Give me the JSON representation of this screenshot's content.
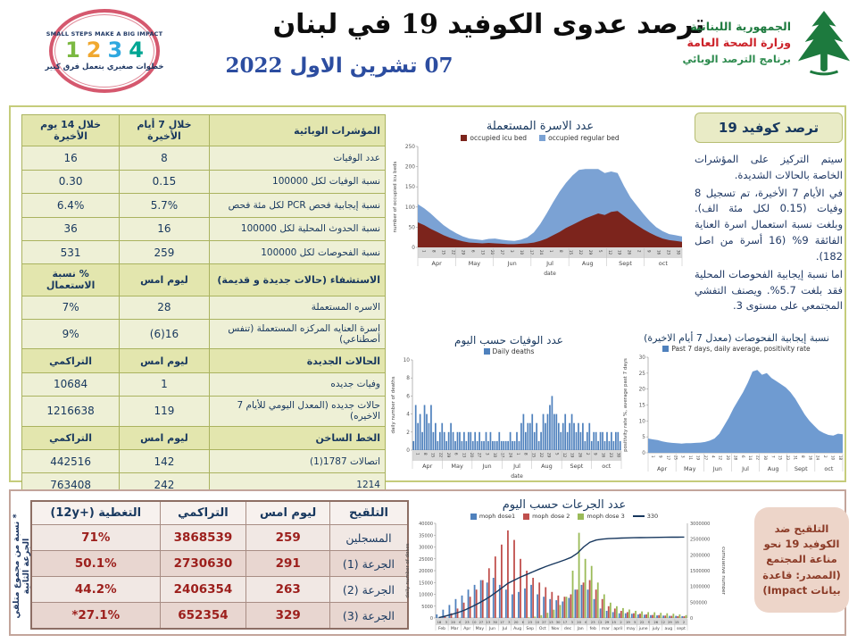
{
  "header": {
    "stamp": {
      "top_text": "SMALL STEPS MAKE A BIG IMPACT",
      "numbers": [
        "1",
        "2",
        "3",
        "4"
      ],
      "number_colors": [
        "#7cb942",
        "#f0a830",
        "#2fa8df",
        "#00a693"
      ],
      "bottom_text": "خطوات صغيري بتعمل فرق كبير"
    },
    "title": "ترصد عدوى الكوفيد 19 في لبنان",
    "date": "07 تشرين الاول 2022",
    "ministry": {
      "line1": "الجمهورية اللبنانية",
      "line2": "وزارة الصحة العامة",
      "line3": "برنامج الترصد الوبائي"
    }
  },
  "surveillance": {
    "panel_title": "ترصد كوفيد 19",
    "paragraphs": [
      "سيتم التركيز على المؤشرات الخاصة بالحالات الشديدة.",
      "في الأيام 7 الأخيرة، تم تسجيل 8 وفيات (0.15 لكل مئة الف). وبلغت نسبة استعمال اسرة العناية الفائقة 9% (16 أسرة من اصل 182).",
      "اما نسبة إيجابية الفحوصات المحلية فقد بلغت 5.7%. ويصنف التفشي المجتمعي على مستوى 3."
    ],
    "table": {
      "rows": [
        {
          "header": true,
          "cells": [
            "المؤشرات الوبائية",
            "خلال 7 أيام الأخيرة",
            "خلال 14 يوم الأخيرة"
          ]
        },
        {
          "header": false,
          "cells": [
            "عدد الوفيات",
            "8",
            "16"
          ]
        },
        {
          "header": false,
          "cells": [
            "نسبة الوفيات لكل 100000",
            "0.15",
            "0.30"
          ]
        },
        {
          "header": false,
          "cells": [
            "نسبة إيجابية فحص PCR لكل مئة فحص",
            "5.7%",
            "6.4%"
          ]
        },
        {
          "header": false,
          "cells": [
            "نسبة الحدوث المحلية لكل 100000",
            "16",
            "36"
          ]
        },
        {
          "header": false,
          "cells": [
            "نسبة الفحوصات لكل 100000",
            "259",
            "531"
          ]
        },
        {
          "header": true,
          "cells": [
            "الاستشفاء (حالات جديدة و قديمة)",
            "ليوم امس",
            "% نسبة الاستعمال"
          ]
        },
        {
          "header": false,
          "cells": [
            "الاسره المستعملة",
            "28",
            "7%"
          ]
        },
        {
          "header": false,
          "cells": [
            "اسرة العنايه المركزه المستعملة (تنفس أصطناعي)",
            "16(6)",
            "9%"
          ]
        },
        {
          "header": true,
          "cells": [
            "الحالات الجديدة",
            "ليوم امس",
            "التراكمي"
          ]
        },
        {
          "header": false,
          "cells": [
            "وفيات جديده",
            "1",
            "10684"
          ]
        },
        {
          "header": false,
          "cells": [
            "حالات جديده (المعدل اليومي للأيام 7 الاخيره)",
            "119",
            "1216638"
          ]
        },
        {
          "header": true,
          "cells": [
            "الخط الساخن",
            "ليوم امس",
            "التراكمي"
          ]
        },
        {
          "header": false,
          "cells": [
            "اتصالات 1787(1)",
            "142",
            "442516"
          ]
        },
        {
          "header": false,
          "cells": [
            "1214",
            "242",
            "763408"
          ]
        }
      ]
    }
  },
  "vaccination": {
    "table": {
      "columns": [
        "التلقيح",
        "ليوم امس",
        "التراكمي",
        "التغطية (+12y)"
      ],
      "rows": [
        [
          "المسجلين",
          "259",
          "3868539",
          "71%"
        ],
        [
          "الجرعة (1)",
          "291",
          "2730630",
          "50.1%"
        ],
        [
          "الجرعة (2)",
          "263",
          "2406354",
          "44.2%"
        ],
        [
          "الجرعة (3)",
          "329",
          "652354",
          "27.1%*"
        ]
      ]
    },
    "note": "* نسبة من مجموع متلقي الجرعة الثانية",
    "box_text": "التلقيح ضد الكوفيد 19 نحو مناعة المجتمع (المصدر: قاعدة بيانات Impact)"
  },
  "chart_data": [
    {
      "id": "beds",
      "type": "area-stacked",
      "title": "عدد الاسرة المستعملة",
      "ylabel": "number of occupied icu beds",
      "xlabel": "date",
      "ylim": [
        0,
        250
      ],
      "yticks": [
        0,
        50,
        100,
        150,
        200,
        250
      ],
      "months": [
        "Apr",
        "May",
        "Jun",
        "Jul",
        "Aug",
        "Sept",
        "oct"
      ],
      "day_ticks": [
        "1",
        "8",
        "15",
        "22",
        "29",
        "6",
        "13",
        "20",
        "27",
        "3",
        "10",
        "17",
        "24",
        "1",
        "8",
        "15",
        "22",
        "29",
        "5",
        "12",
        "19",
        "26",
        "2",
        "9",
        "16",
        "23",
        "30"
      ],
      "series": [
        {
          "name": "occupied icu bed",
          "color": "#7c241c",
          "values": [
            62,
            55,
            46,
            38,
            30,
            24,
            19,
            15,
            12,
            11,
            10,
            11,
            10,
            9,
            8,
            8,
            9,
            10,
            12,
            16,
            22,
            30,
            38,
            48,
            56,
            64,
            72,
            78,
            84,
            80,
            88,
            90,
            78,
            66,
            55,
            45,
            36,
            28,
            22,
            18,
            16,
            14
          ]
        },
        {
          "name": "occupied regular bed",
          "color": "#7ba2d4",
          "values": [
            45,
            42,
            38,
            31,
            25,
            20,
            16,
            12,
            10,
            9,
            8,
            10,
            12,
            10,
            9,
            8,
            10,
            15,
            25,
            42,
            62,
            82,
            100,
            112,
            122,
            128,
            122,
            116,
            110,
            104,
            100,
            94,
            74,
            58,
            48,
            38,
            29,
            22,
            18,
            15,
            14,
            13
          ]
        }
      ]
    },
    {
      "id": "deaths",
      "type": "bar",
      "title": "عدد الوفيات حسب اليوم",
      "ylabel": "daily number of deaths",
      "xlabel": "date",
      "ylim": [
        0,
        10
      ],
      "yticks": [
        0,
        2,
        4,
        6,
        8,
        10
      ],
      "months": [
        "Apr",
        "May",
        "Jun",
        "Jul",
        "Aug",
        "Sept",
        "oct"
      ],
      "day_ticks": [
        "1",
        "8",
        "15",
        "22",
        "29",
        "6",
        "13",
        "20",
        "27",
        "3",
        "10",
        "17",
        "24",
        "1",
        "8",
        "15",
        "22",
        "29",
        "5",
        "12",
        "19",
        "26",
        "2",
        "9",
        "16",
        "23",
        "30"
      ],
      "legend": [
        {
          "label": "Daily deaths",
          "color": "#4f81bd"
        }
      ],
      "color": "#4f81bd",
      "values": [
        1,
        5,
        3,
        4,
        2,
        5,
        4,
        3,
        5,
        2,
        3,
        1,
        2,
        3,
        2,
        1,
        2,
        3,
        2,
        1,
        2,
        2,
        1,
        2,
        1,
        2,
        2,
        1,
        2,
        1,
        2,
        1,
        1,
        2,
        1,
        2,
        1,
        1,
        1,
        2,
        1,
        1,
        1,
        1,
        2,
        1,
        1,
        2,
        1,
        3,
        4,
        2,
        3,
        3,
        4,
        2,
        3,
        1,
        2,
        4,
        3,
        4,
        5,
        6,
        4,
        4,
        3,
        2,
        3,
        4,
        2,
        3,
        4,
        3,
        2,
        3,
        2,
        3,
        1,
        2,
        3,
        1,
        2,
        2,
        1,
        2,
        2,
        1,
        2,
        1,
        2,
        1,
        2,
        2,
        1
      ]
    },
    {
      "id": "positivity",
      "type": "area",
      "title": "نسبة إيجابية الفحوصات (معدل 7 أيام الاخيرة)",
      "ylabel": "positivity rate %, average past 7 days",
      "ylim": [
        0,
        30
      ],
      "yticks": [
        0,
        5,
        10,
        15,
        20,
        25,
        30
      ],
      "months": [
        "Apr",
        "May",
        "Jun",
        "Jul",
        "Aug",
        "Sept",
        "oct"
      ],
      "day_ticks": [
        "1",
        "9",
        "17",
        "25",
        "3",
        "11",
        "19",
        "27",
        "4",
        "12",
        "20",
        "28",
        "6",
        "14",
        "22",
        "30",
        "7",
        "15",
        "23",
        "31",
        "8",
        "16",
        "24",
        "2",
        "10",
        "18"
      ],
      "legend": [
        {
          "label": "Past 7 days, daily average, positivity rate",
          "color": "#4f81bd"
        }
      ],
      "color": "#6f9bd1",
      "values": [
        4.5,
        4.2,
        4,
        3.6,
        3.3,
        3.1,
        3,
        2.9,
        3,
        3,
        3.1,
        3.2,
        3.4,
        3.8,
        4.5,
        6,
        8.5,
        11,
        14,
        16.5,
        19,
        22,
        25.5,
        26,
        24.5,
        25,
        23.5,
        22.5,
        21.5,
        20.5,
        19,
        17,
        14.5,
        12,
        10,
        8.5,
        7,
        6.2,
        5.6,
        5.4,
        6,
        5.8
      ]
    },
    {
      "id": "doses",
      "type": "combo",
      "title": "عدد الجرعات حسب اليوم",
      "ylabel": "daily number of doses",
      "ylabel_right": "cumulative number",
      "ylim": [
        0,
        40000
      ],
      "yticks": [
        0,
        5000,
        10000,
        15000,
        20000,
        25000,
        30000,
        35000,
        40000
      ],
      "ylim2": [
        0,
        3000000
      ],
      "yticks2": [
        0,
        500000,
        1000000,
        1500000,
        2000000,
        2500000,
        3000000
      ],
      "months": [
        "Feb",
        "Mar",
        "Apr",
        "May",
        "Jun",
        "Jul",
        "Aug",
        "Sep",
        "Oct",
        "Nov",
        "dec",
        "Jan",
        "feb",
        "mar",
        "april",
        "may",
        "june",
        "july",
        "aug",
        "sept"
      ],
      "day_ticks": [
        "18",
        "3",
        "20",
        "6",
        "23",
        "10",
        "27",
        "13",
        "30",
        "17",
        "3",
        "20",
        "6",
        "23",
        "10",
        "27",
        "13",
        "30",
        "17",
        "3",
        "20",
        "6",
        "23",
        "12",
        "29",
        "15",
        "2",
        "19",
        "5",
        "22",
        "9",
        "26",
        "12",
        "29",
        "15",
        "2"
      ],
      "series": [
        {
          "name": "moph dose1",
          "color": "#4f81bd",
          "values": [
            1500,
            3500,
            5500,
            8000,
            9500,
            12000,
            14000,
            16000,
            15000,
            17000,
            14000,
            12000,
            10000,
            11000,
            12500,
            14000,
            10000,
            9000,
            8000,
            7500,
            7000,
            8500,
            12000,
            14000,
            12000,
            8000,
            4000,
            3000,
            2500,
            2000,
            2000,
            1800,
            1500,
            1400,
            1200,
            1100,
            1000,
            900,
            900,
            800
          ]
        },
        {
          "name": "moph dose 2",
          "color": "#c0504d",
          "values": [
            0,
            600,
            2000,
            4000,
            6500,
            9000,
            12000,
            16000,
            21000,
            26000,
            31000,
            37000,
            33000,
            25000,
            20000,
            17000,
            15000,
            13000,
            11000,
            9500,
            9000,
            10000,
            12000,
            15000,
            16000,
            12000,
            8000,
            5000,
            4000,
            3000,
            2500,
            2000,
            1800,
            1500,
            1300,
            1200,
            1000,
            900,
            800,
            700
          ]
        },
        {
          "name": "moph dose 3",
          "color": "#9bbb59",
          "values": [
            0,
            0,
            0,
            0,
            0,
            0,
            0,
            0,
            0,
            0,
            0,
            0,
            0,
            0,
            300,
            600,
            1200,
            2200,
            3500,
            5500,
            9000,
            20000,
            36000,
            25000,
            22000,
            15000,
            10000,
            6500,
            5000,
            4200,
            3600,
            3000,
            2800,
            2500,
            2400,
            2200,
            2000,
            1800,
            1500,
            1200
          ]
        }
      ],
      "line": {
        "name": "330",
        "color": "#17375e",
        "values": [
          10000,
          60000,
          110000,
          170000,
          240000,
          330000,
          430000,
          540000,
          660000,
          800000,
          950000,
          1100000,
          1200000,
          1300000,
          1380000,
          1470000,
          1550000,
          1630000,
          1700000,
          1770000,
          1840000,
          1920000,
          2050000,
          2250000,
          2400000,
          2470000,
          2500000,
          2515000,
          2525000,
          2532000,
          2538000,
          2543000,
          2547000,
          2550000,
          2553000,
          2556000,
          2558000,
          2560000,
          2562000,
          2564000
        ]
      }
    }
  ]
}
